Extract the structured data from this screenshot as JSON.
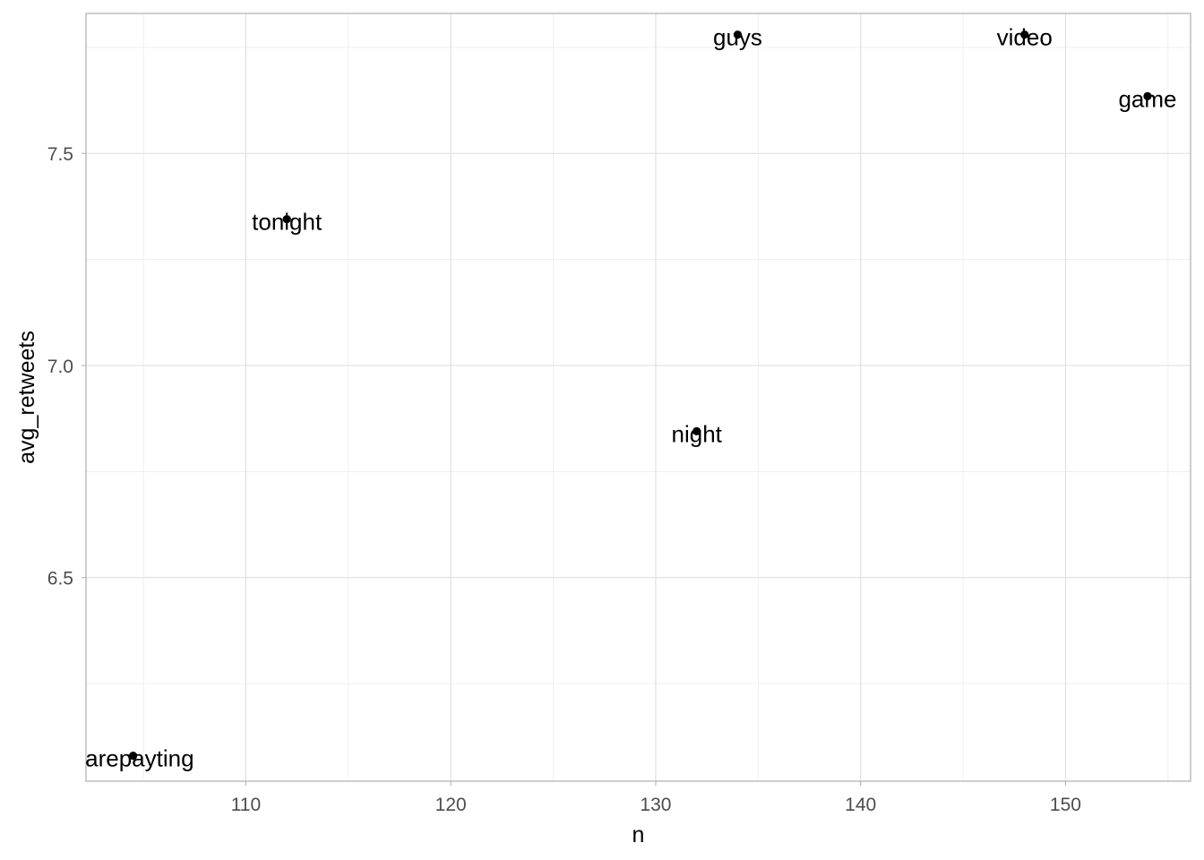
{
  "chart_data": {
    "type": "scatter",
    "xlabel": "n",
    "ylabel": "avg_retweets",
    "xlim": [
      102.2,
      156.1
    ],
    "ylim": [
      6.02,
      7.83
    ],
    "x_ticks": [
      110,
      120,
      130,
      140,
      150
    ],
    "x_minor_ticks": [
      105,
      115,
      125,
      135,
      145,
      155
    ],
    "y_ticks": [
      6.5,
      7.0,
      7.5
    ],
    "y_minor_ticks": [
      6.25,
      6.75,
      7.25,
      7.75
    ],
    "grid": true,
    "legend": "none",
    "points": [
      {
        "label": "earepayting",
        "x": 104.5,
        "y": 6.08
      },
      {
        "label": "tonight",
        "x": 112,
        "y": 7.345
      },
      {
        "label": "night",
        "x": 132,
        "y": 6.845
      },
      {
        "label": "guys",
        "x": 134,
        "y": 7.78
      },
      {
        "label": "video",
        "x": 148,
        "y": 7.78
      },
      {
        "label": "game",
        "x": 154,
        "y": 7.635
      }
    ],
    "colors": {
      "point": "#000000",
      "label": "#000000",
      "grid": "#dedede",
      "panel_border": "#b3b3b3"
    }
  }
}
